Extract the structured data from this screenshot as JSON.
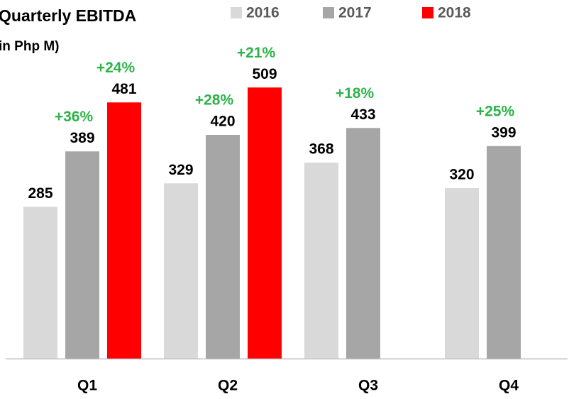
{
  "chart_data": {
    "type": "bar",
    "title": "Quarterly EBITDA",
    "subtitle": "in Php M)",
    "categories": [
      "Q1",
      "Q2",
      "Q3",
      "Q4"
    ],
    "series": [
      {
        "name": "2016",
        "color": "#d9d9d9",
        "values": [
          285,
          329,
          368,
          320
        ]
      },
      {
        "name": "2017",
        "color": "#a6a6a6",
        "values": [
          389,
          420,
          433,
          399
        ],
        "growth_labels": [
          "+36%",
          "+28%",
          "+18%",
          "+25%"
        ]
      },
      {
        "name": "2018",
        "color": "#ff0000",
        "values": [
          481,
          509,
          null,
          null
        ],
        "growth_labels": [
          "+24%",
          "+21%",
          null,
          null
        ]
      }
    ],
    "ylim": [
      0,
      540
    ],
    "growth_color": "#2db34a",
    "grid": false
  }
}
